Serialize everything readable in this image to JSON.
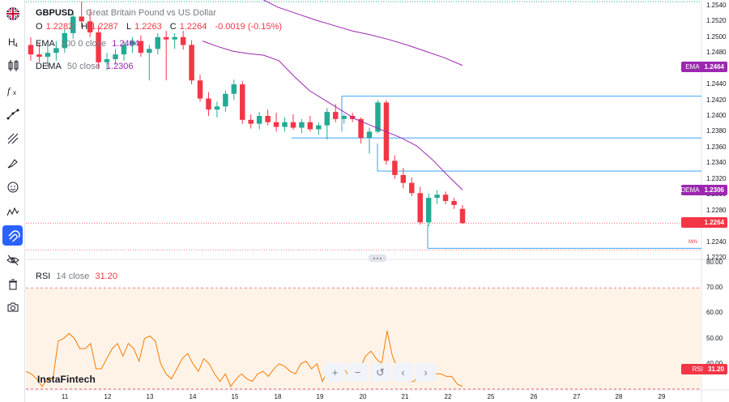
{
  "symbol": {
    "ticker": "GBPUSD",
    "name": "Great Britain Pound vs US Dollar"
  },
  "ohlc": {
    "o_label": "O",
    "o": "1.2282",
    "h_label": "H",
    "h": "1.2287",
    "l_label": "L",
    "l": "1.2263",
    "c_label": "C",
    "c": "1.2264",
    "change": "-0.0019 (-0.15%)"
  },
  "indicators": {
    "ema": {
      "name": "EMA",
      "params": "100 0 close",
      "value": "1.2464"
    },
    "dema": {
      "name": "DEMA",
      "params": "50 close",
      "value": "1.2306"
    },
    "rsi": {
      "name": "RSI",
      "params": "14 close",
      "value": "31.20"
    }
  },
  "price_axis": [
    "1.2540",
    "1.2520",
    "1.2500",
    "1.2480",
    "1.2460",
    "1.2440",
    "1.2420",
    "1.2400",
    "1.2380",
    "1.2360",
    "1.2340",
    "1.2320",
    "1.2300",
    "1.2280",
    "1.2260",
    "1.2240",
    "1.2220"
  ],
  "rsi_axis": [
    "80.00",
    "70.00",
    "60.00",
    "50.00",
    "40.00"
  ],
  "date_axis": [
    "11",
    "12",
    "13",
    "14",
    "15",
    "18",
    "19",
    "20",
    "21",
    "22",
    "25",
    "26",
    "27",
    "28",
    "29"
  ],
  "price_tags": {
    "ema": {
      "name": "EMA",
      "value": "1.2464"
    },
    "dema": {
      "name": "DEMA",
      "value": "1.2306"
    },
    "last": {
      "value": "1.2264"
    },
    "rsi": {
      "name": "RSI",
      "value": "31.20"
    }
  },
  "min_marker": "MIN",
  "brand": "InstaFintech",
  "nav_buttons": [
    "+",
    "−",
    "↺",
    "‹",
    "›"
  ],
  "colors": {
    "up": "#22ab94",
    "down": "#f23645",
    "ema": "#9c27b0",
    "dema": "#2962ff",
    "rsi": "#f57c00"
  },
  "chart_data": {
    "type": "candlestick",
    "title": "GBPUSD — Great Britain Pound vs US Dollar",
    "ylim": [
      1.222,
      1.2545
    ],
    "candles_ohlc": [
      [
        1.249,
        1.25,
        1.247,
        1.2478
      ],
      [
        1.2478,
        1.2492,
        1.2468,
        1.2475
      ],
      [
        1.2475,
        1.249,
        1.2462,
        1.248
      ],
      [
        1.248,
        1.2495,
        1.247,
        1.2486
      ],
      [
        1.2486,
        1.251,
        1.248,
        1.2505
      ],
      [
        1.2505,
        1.253,
        1.2498,
        1.2526
      ],
      [
        1.2526,
        1.2545,
        1.2512,
        1.252
      ],
      [
        1.252,
        1.2534,
        1.25,
        1.2506
      ],
      [
        1.2506,
        1.2515,
        1.246,
        1.2468
      ],
      [
        1.2468,
        1.248,
        1.2458,
        1.2472
      ],
      [
        1.2472,
        1.2485,
        1.2465,
        1.2478
      ],
      [
        1.2478,
        1.2495,
        1.247,
        1.249
      ],
      [
        1.249,
        1.25,
        1.248,
        1.2495
      ],
      [
        1.2495,
        1.2502,
        1.2475,
        1.248
      ],
      [
        1.248,
        1.249,
        1.2445,
        1.2485
      ],
      [
        1.2485,
        1.2505,
        1.2478,
        1.25
      ],
      [
        1.25,
        1.2508,
        1.2445,
        1.2497
      ],
      [
        1.2497,
        1.2505,
        1.2485,
        1.25
      ],
      [
        1.25,
        1.2508,
        1.2484,
        1.249
      ],
      [
        1.249,
        1.2496,
        1.244,
        1.2445
      ],
      [
        1.2445,
        1.2452,
        1.2418,
        1.2422
      ],
      [
        1.2422,
        1.243,
        1.24,
        1.2408
      ],
      [
        1.2408,
        1.2418,
        1.2398,
        1.2412
      ],
      [
        1.2412,
        1.2432,
        1.2405,
        1.2428
      ],
      [
        1.2428,
        1.2446,
        1.242,
        1.244
      ],
      [
        1.244,
        1.2444,
        1.239,
        1.2395
      ],
      [
        1.2395,
        1.2402,
        1.2384,
        1.239
      ],
      [
        1.239,
        1.2405,
        1.2383,
        1.24
      ],
      [
        1.24,
        1.2408,
        1.2388,
        1.2392
      ],
      [
        1.2392,
        1.2404,
        1.238,
        1.2386
      ],
      [
        1.2386,
        1.2398,
        1.238,
        1.2392
      ],
      [
        1.2392,
        1.2402,
        1.2382,
        1.2385
      ],
      [
        1.2385,
        1.2396,
        1.2378,
        1.2392
      ],
      [
        1.2392,
        1.24,
        1.238,
        1.2383
      ],
      [
        1.2383,
        1.2392,
        1.2376,
        1.2388
      ],
      [
        1.2388,
        1.241,
        1.237,
        1.2405
      ],
      [
        1.2405,
        1.2415,
        1.2392,
        1.2396
      ],
      [
        1.2396,
        1.2402,
        1.239,
        1.24
      ],
      [
        1.24,
        1.2404,
        1.2392,
        1.2396
      ],
      [
        1.2396,
        1.2398,
        1.2365,
        1.2372
      ],
      [
        1.2372,
        1.2385,
        1.2352,
        1.238
      ],
      [
        1.238,
        1.242,
        1.2378,
        1.2417
      ],
      [
        1.2417,
        1.242,
        1.2338,
        1.2343
      ],
      [
        1.2343,
        1.235,
        1.232,
        1.2325
      ],
      [
        1.2325,
        1.2334,
        1.2308,
        1.2315
      ],
      [
        1.2315,
        1.2322,
        1.2298,
        1.2302
      ],
      [
        1.2302,
        1.231,
        1.2262,
        1.2265
      ],
      [
        1.2265,
        1.2302,
        1.226,
        1.2296
      ],
      [
        1.2296,
        1.2306,
        1.2288,
        1.23
      ],
      [
        1.23,
        1.2304,
        1.2288,
        1.2292
      ],
      [
        1.2292,
        1.2296,
        1.2282,
        1.2287
      ],
      [
        1.2282,
        1.2287,
        1.2263,
        1.2264
      ]
    ],
    "ema_100": [
      1.255,
      1.2538,
      1.253,
      1.2522,
      1.2515,
      1.2508,
      1.2503,
      1.2497,
      1.249,
      1.2482,
      1.2474,
      1.2464
    ],
    "dema_50": [
      1.2495,
      1.2488,
      1.2482,
      1.2479,
      1.2477,
      1.247,
      1.245,
      1.2432,
      1.242,
      1.2408,
      1.2396,
      1.2388,
      1.238,
      1.2372,
      1.2362,
      1.2345,
      1.2325,
      1.2306
    ],
    "rsi_14": [
      37,
      36,
      34,
      31,
      34,
      34,
      49,
      50,
      52,
      50,
      46,
      46,
      48,
      38,
      38,
      42,
      46,
      48,
      43,
      48,
      46,
      41,
      50,
      51,
      49,
      40,
      36,
      34,
      38,
      42,
      44,
      40,
      37,
      42,
      40,
      36,
      33,
      36,
      31,
      34,
      36,
      34,
      33,
      36,
      37,
      35,
      38,
      40,
      39,
      37,
      36,
      40,
      41,
      38,
      40,
      33,
      37,
      36,
      38,
      38,
      35,
      37,
      38,
      43,
      45,
      42,
      40,
      53,
      43,
      38,
      36,
      33,
      33,
      36,
      34,
      38,
      36,
      36,
      35,
      35,
      32,
      31
    ],
    "rsi_ylim": [
      30,
      80
    ],
    "rsi_levels": [
      70,
      30
    ],
    "horizontal_lines": [
      1.2425,
      1.2372,
      1.233,
      1.2232
    ]
  }
}
